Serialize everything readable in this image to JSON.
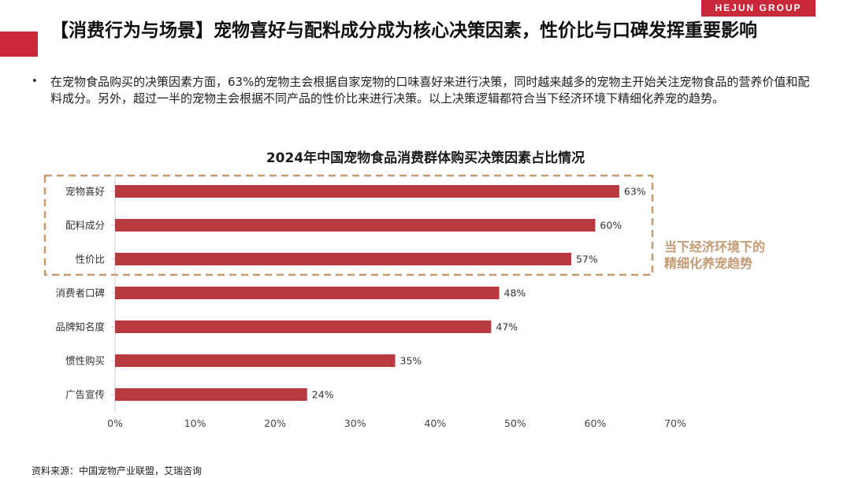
{
  "brand": "HEJUN GROUP",
  "title": "【消费行为与场景】宠物喜好与配料成分成为核心决策因素，性价比与口碑发挥重要影响",
  "bullet": "在宠物食品购买的决策因素方面，63%的宠物主会根据自家宠物的口味喜好来进行决策，同时越来越多的宠物主开始关注宠物食品的营养价值和配料成分。另外，超过一半的宠物主会根据不同产品的性价比来进行决策。以上决策逻辑都符合当下经济环境下精细化养宠的趋势。",
  "annotation_line1": "当下经济环境下的",
  "annotation_line2": "精细化养宠趋势",
  "source": "资料来源：中国宠物产业联盟，艾瑞咨询",
  "colors": {
    "brand": "#c8283a",
    "bar": "#b83a3f",
    "annotation": "#c49a73",
    "dash_box": "#c49a73"
  },
  "chart_data": {
    "type": "bar",
    "orientation": "horizontal",
    "title": "2024年中国宠物食品消费群体购买决策因素占比情况",
    "categories": [
      "宠物喜好",
      "配料成分",
      "性价比",
      "消费者口碑",
      "品牌知名度",
      "惯性购买",
      "广告宣传"
    ],
    "values": [
      63,
      60,
      57,
      48,
      47,
      35,
      24
    ],
    "value_labels": [
      "63%",
      "60%",
      "57%",
      "48%",
      "47%",
      "35%",
      "24%"
    ],
    "xlim": [
      0,
      70
    ],
    "xticks": [
      "0%",
      "10%",
      "20%",
      "30%",
      "40%",
      "50%",
      "60%",
      "70%"
    ],
    "grid": false,
    "highlight_categories": [
      "宠物喜好",
      "配料成分",
      "性价比"
    ]
  }
}
